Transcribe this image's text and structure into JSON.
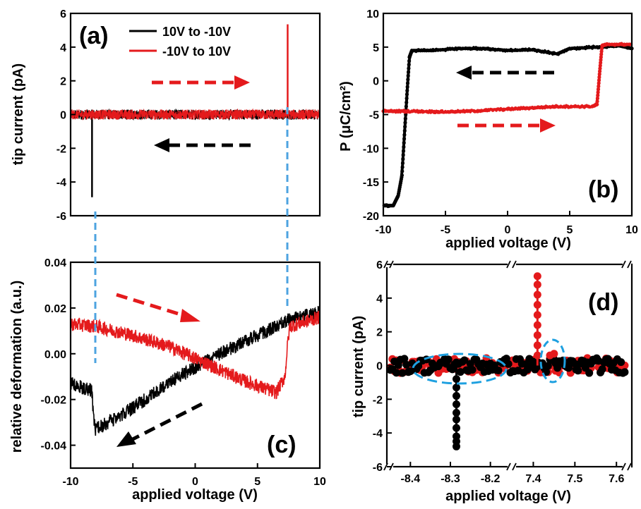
{
  "colors": {
    "forward": "#e41a1c",
    "reverse": "#000000",
    "guide": "#4da3e0",
    "ellipse": "#1ea0e0"
  },
  "legend": {
    "reverse_label": "10V to -10V",
    "forward_label": "-10V to 10V"
  },
  "chart_data": [
    {
      "id": "a",
      "panel_label": "(a)",
      "type": "line",
      "title": "",
      "xlabel": "",
      "ylabel": "tip current (pA)",
      "xlim": [
        -10,
        10
      ],
      "ylim": [
        -6,
        6
      ],
      "yticks": [
        "6",
        "4",
        "2",
        "0",
        "-2",
        "-4",
        "-6"
      ],
      "series": [
        {
          "name": "10V to -10V",
          "color": "#000000",
          "baseline": 0,
          "noise": 0.5,
          "spikes": [
            {
              "x": -8.28,
              "y": -4.9
            }
          ]
        },
        {
          "name": "-10V to 10V",
          "color": "#e41a1c",
          "baseline": 0,
          "noise": 0.5,
          "spikes": [
            {
              "x": 7.42,
              "y": 5.35
            }
          ]
        }
      ]
    },
    {
      "id": "b",
      "panel_label": "(b)",
      "type": "line",
      "title": "",
      "xlabel": "applied voltage (V)",
      "ylabel": "P (μC/cm²)",
      "xlim": [
        -10,
        10
      ],
      "ylim": [
        -20,
        10
      ],
      "xticks": [
        "-10",
        "-5",
        "0",
        "5",
        "10"
      ],
      "yticks": [
        "10",
        "5",
        "0",
        "-5",
        "-10",
        "-15",
        "-20"
      ],
      "series": [
        {
          "name": "10V to -10V",
          "color": "#000000",
          "points": [
            [
              10,
              4.8
            ],
            [
              9,
              5.2
            ],
            [
              7,
              5.0
            ],
            [
              5,
              4.8
            ],
            [
              4,
              4.0
            ],
            [
              2,
              4.6
            ],
            [
              0,
              4.5
            ],
            [
              -2,
              4.8
            ],
            [
              -4,
              4.8
            ],
            [
              -6,
              4.5
            ],
            [
              -7.7,
              4.5
            ],
            [
              -7.9,
              3.5
            ],
            [
              -8.1,
              -2
            ],
            [
              -8.3,
              -8
            ],
            [
              -8.5,
              -14
            ],
            [
              -8.8,
              -17
            ],
            [
              -9.2,
              -18.5
            ],
            [
              -10,
              -18.5
            ]
          ]
        },
        {
          "name": "-10V to 10V",
          "color": "#e41a1c",
          "points": [
            [
              -10,
              -4.5
            ],
            [
              -8,
              -4.5
            ],
            [
              -5,
              -4.6
            ],
            [
              -3,
              -4.5
            ],
            [
              0,
              -4.2
            ],
            [
              2,
              -4.0
            ],
            [
              4,
              -3.8
            ],
            [
              6.8,
              -3.8
            ],
            [
              7.2,
              -3.5
            ],
            [
              7.4,
              1
            ],
            [
              7.6,
              5.2
            ],
            [
              8,
              5.4
            ],
            [
              10,
              5.4
            ]
          ]
        }
      ]
    },
    {
      "id": "c",
      "panel_label": "(c)",
      "type": "line",
      "title": "",
      "xlabel": "applied voltage (V)",
      "ylabel": "relative deformation (a.u.)",
      "xlim": [
        -10,
        10
      ],
      "ylim": [
        -0.05,
        0.04
      ],
      "xticks": [
        "-10",
        "-5",
        "0",
        "5",
        "10"
      ],
      "yticks": [
        "0.04",
        "0.02",
        "0.00",
        "-0.02",
        "-0.04"
      ],
      "series": [
        {
          "name": "10V to -10V",
          "color": "#000000",
          "noise": 0.003,
          "points": [
            [
              10,
              0.018
            ],
            [
              7.5,
              0.015
            ],
            [
              7,
              0.013
            ],
            [
              5,
              0.008
            ],
            [
              2,
              0.0
            ],
            [
              0,
              -0.006
            ],
            [
              -2,
              -0.012
            ],
            [
              -4,
              -0.02
            ],
            [
              -6,
              -0.027
            ],
            [
              -8,
              -0.033
            ],
            [
              -8.2,
              -0.025
            ],
            [
              -8.3,
              -0.016
            ],
            [
              -9,
              -0.015
            ],
            [
              -10,
              -0.013
            ]
          ]
        },
        {
          "name": "-10V to 10V",
          "color": "#e41a1c",
          "noise": 0.003,
          "points": [
            [
              -10,
              0.013
            ],
            [
              -8,
              0.012
            ],
            [
              -5,
              0.008
            ],
            [
              -2,
              0.003
            ],
            [
              0,
              -0.002
            ],
            [
              2,
              -0.007
            ],
            [
              4,
              -0.012
            ],
            [
              6.5,
              -0.017
            ],
            [
              7.2,
              -0.01
            ],
            [
              7.45,
              0.006
            ],
            [
              7.6,
              0.012
            ],
            [
              10,
              0.016
            ]
          ]
        }
      ]
    },
    {
      "id": "d",
      "panel_label": "(d)",
      "type": "scatter",
      "title": "",
      "xlabel": "applied voltage (V)",
      "ylabel": "tip current (pA)",
      "ylim": [
        -6,
        6
      ],
      "xticks": [
        "-8.4",
        "-8.3",
        "-8.2",
        "7.4",
        "7.5",
        "7.6"
      ],
      "yticks": [
        "6",
        "4",
        "2",
        "0",
        "-2",
        "-4",
        "-6"
      ],
      "x_segments": [
        [
          -8.45,
          -8.15
        ],
        [
          7.35,
          7.62
        ]
      ],
      "series": [
        {
          "name": "-10V to 10V",
          "color": "#e41a1c",
          "spike": {
            "x": 7.41,
            "values": [
              5.3,
              4.8,
              4.2,
              3.6,
              3.0,
              2.4,
              1.8,
              1.2,
              0.6
            ]
          },
          "bumps": [
            {
              "x": 7.45,
              "y": 0.7
            },
            {
              "x": 7.44,
              "y": 0.6
            }
          ]
        },
        {
          "name": "10V to -10V",
          "color": "#000000",
          "spike": {
            "x": -8.285,
            "values": [
              -0.8,
              -1.3,
              -1.8,
              -2.3,
              -2.8,
              -3.2,
              -3.7,
              -4.2,
              -4.5,
              -4.8
            ]
          }
        }
      ]
    }
  ]
}
